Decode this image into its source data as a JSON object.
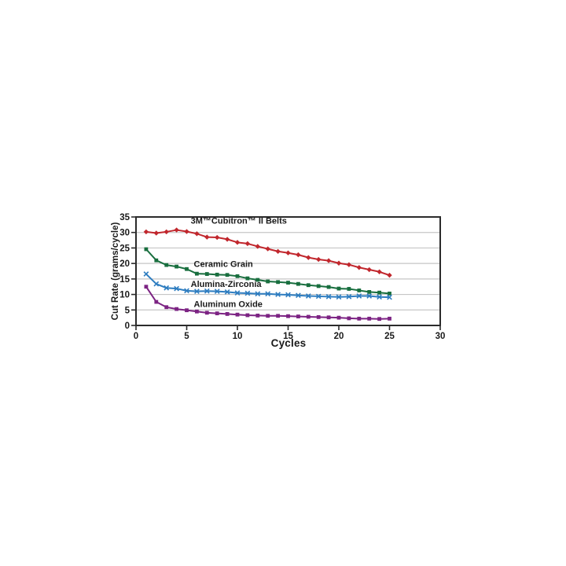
{
  "chart_data": {
    "type": "line",
    "title": "",
    "xlabel": "Cycles",
    "ylabel": "Cut Rate (grams/cycle)",
    "xlim": [
      0,
      30
    ],
    "ylim": [
      0,
      35
    ],
    "xticks": [
      0,
      5,
      10,
      15,
      20,
      25,
      30
    ],
    "yticks": [
      0,
      5,
      10,
      15,
      20,
      25,
      30,
      35
    ],
    "grid": "horizontal-only",
    "gridline_color": "#c6c6c6",
    "axis_border_color": "#2b2b2b",
    "tick_text_color": "#1a1a1a",
    "legend_position": "inline-labels",
    "x": [
      1,
      2,
      3,
      4,
      5,
      6,
      7,
      8,
      9,
      10,
      11,
      12,
      13,
      14,
      15,
      16,
      17,
      18,
      19,
      20,
      21,
      22,
      23,
      24,
      25
    ],
    "series": [
      {
        "name": "3M™Cubitron™ II Belts",
        "color": "#c1272d",
        "marker": "diamond",
        "line_style": "solid",
        "values": [
          30.2,
          29.8,
          30.2,
          30.8,
          30.3,
          29.6,
          28.5,
          28.4,
          27.8,
          26.8,
          26.4,
          25.5,
          24.7,
          23.9,
          23.4,
          22.8,
          21.9,
          21.3,
          20.9,
          20.1,
          19.6,
          18.7,
          18.0,
          17.3,
          16.2
        ],
        "label_x": 5.4,
        "label_y": 32.8
      },
      {
        "name": "Ceramic Grain",
        "color": "#186e3e",
        "marker": "square",
        "line_style": "solid",
        "values": [
          24.6,
          21.0,
          19.5,
          19.0,
          18.2,
          16.7,
          16.6,
          16.4,
          16.3,
          15.9,
          15.2,
          14.7,
          14.2,
          14.0,
          13.8,
          13.4,
          13.0,
          12.7,
          12.4,
          11.9,
          11.8,
          11.3,
          10.8,
          10.6,
          10.3
        ],
        "label_x": 5.7,
        "label_y": 18.9
      },
      {
        "name": "Alumina-Zirconia",
        "color": "#2e7dc0",
        "marker": "x",
        "line_style": "solid",
        "values": [
          16.6,
          13.4,
          12.1,
          11.9,
          11.2,
          11.0,
          11.1,
          11.0,
          10.8,
          10.5,
          10.4,
          10.2,
          10.2,
          10.0,
          9.9,
          9.7,
          9.5,
          9.4,
          9.3,
          9.2,
          9.3,
          9.5,
          9.5,
          9.2,
          9.1
        ],
        "label_x": 5.4,
        "label_y": 12.4
      },
      {
        "name": "Aluminum Oxide",
        "color": "#7c2383",
        "marker": "square",
        "line_style": "solid",
        "values": [
          12.5,
          7.6,
          5.9,
          5.3,
          4.9,
          4.5,
          4.1,
          3.9,
          3.7,
          3.5,
          3.3,
          3.2,
          3.1,
          3.1,
          3.0,
          2.9,
          2.8,
          2.7,
          2.6,
          2.5,
          2.3,
          2.2,
          2.2,
          2.1,
          2.2
        ],
        "label_x": 5.7,
        "label_y": 5.9
      }
    ]
  }
}
